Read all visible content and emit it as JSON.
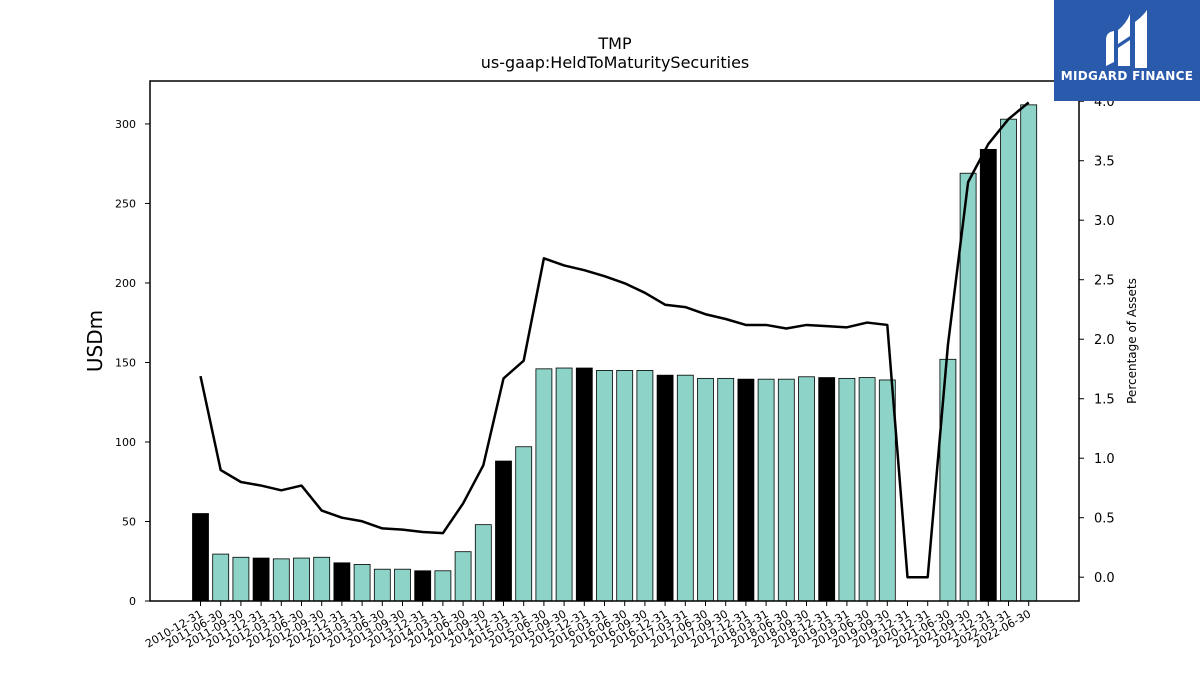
{
  "chart_data": {
    "type": "bar",
    "title": "TMP",
    "subtitle": "us-gaap:HeldToMaturitySecurities",
    "ylabel": "USDm",
    "y2label": "Percentage of Assets",
    "ylim": [
      0,
      327
    ],
    "y2lim": [
      -0.2,
      4.17
    ],
    "yticks": [
      0,
      50,
      100,
      150,
      200,
      250,
      300
    ],
    "y2ticks": [
      "0.0",
      "0.5",
      "1.0",
      "1.5",
      "2.0",
      "2.5",
      "3.0",
      "3.5",
      "4.0"
    ],
    "categories": [
      "2010-12-31",
      "2011-06-30",
      "2011-09-30",
      "2011-12-31",
      "2012-03-31",
      "2012-06-30",
      "2012-09-30",
      "2012-12-31",
      "2013-03-31",
      "2013-06-30",
      "2013-09-30",
      "2013-12-31",
      "2014-03-31",
      "2014-06-30",
      "2014-09-30",
      "2014-12-31",
      "2015-03-31",
      "2015-06-30",
      "2015-09-30",
      "2015-12-31",
      "2016-03-31",
      "2016-06-30",
      "2016-09-30",
      "2016-12-31",
      "2017-03-31",
      "2017-06-30",
      "2017-09-30",
      "2017-12-31",
      "2018-03-31",
      "2018-06-30",
      "2018-09-30",
      "2018-12-31",
      "2019-03-31",
      "2019-06-30",
      "2019-09-30",
      "2019-12-31",
      "2020-12-31",
      "2021-06-30",
      "2021-09-30",
      "2021-12-31",
      "2022-03-31",
      "2022-06-30"
    ],
    "series": [
      {
        "type": "bar",
        "values": [
          55,
          29.5,
          27.5,
          27,
          26.5,
          27,
          27.5,
          24,
          23,
          20,
          20,
          19,
          19,
          31,
          48,
          88,
          97,
          146,
          146.5,
          146.5,
          145,
          145,
          145,
          142,
          142,
          140,
          140,
          139.5,
          139.5,
          139.5,
          141,
          140.5,
          140,
          140.5,
          139,
          0,
          0,
          152,
          269,
          284,
          303,
          312
        ],
        "colors": [
          "#000000",
          "#8dd3c7",
          "#8dd3c7",
          "#000000",
          "#8dd3c7",
          "#8dd3c7",
          "#8dd3c7",
          "#000000",
          "#8dd3c7",
          "#8dd3c7",
          "#8dd3c7",
          "#000000",
          "#8dd3c7",
          "#8dd3c7",
          "#8dd3c7",
          "#000000",
          "#8dd3c7",
          "#8dd3c7",
          "#8dd3c7",
          "#000000",
          "#8dd3c7",
          "#8dd3c7",
          "#8dd3c7",
          "#000000",
          "#8dd3c7",
          "#8dd3c7",
          "#8dd3c7",
          "#000000",
          "#8dd3c7",
          "#8dd3c7",
          "#8dd3c7",
          "#000000",
          "#8dd3c7",
          "#8dd3c7",
          "#8dd3c7",
          "#8dd3c7",
          "#8dd3c7",
          "#8dd3c7",
          "#8dd3c7",
          "#000000",
          "#8dd3c7",
          "#8dd3c7"
        ]
      },
      {
        "type": "line",
        "axis": "y2",
        "color": "#000000",
        "values": [
          1.69,
          0.9,
          0.8,
          0.77,
          0.73,
          0.77,
          0.56,
          0.5,
          0.47,
          0.41,
          0.4,
          0.38,
          0.37,
          0.62,
          0.94,
          1.67,
          1.82,
          2.68,
          2.62,
          2.58,
          2.53,
          2.47,
          2.39,
          2.29,
          2.27,
          2.21,
          2.17,
          2.12,
          2.12,
          2.09,
          2.12,
          2.11,
          2.1,
          2.14,
          2.12,
          0.0,
          0.0,
          1.95,
          3.32,
          3.64,
          3.85,
          3.99
        ]
      }
    ],
    "grid": false,
    "legend": "none"
  },
  "logo": {
    "text": "MIDGARD FINANCE",
    "bg_color": "#2a5aab"
  }
}
